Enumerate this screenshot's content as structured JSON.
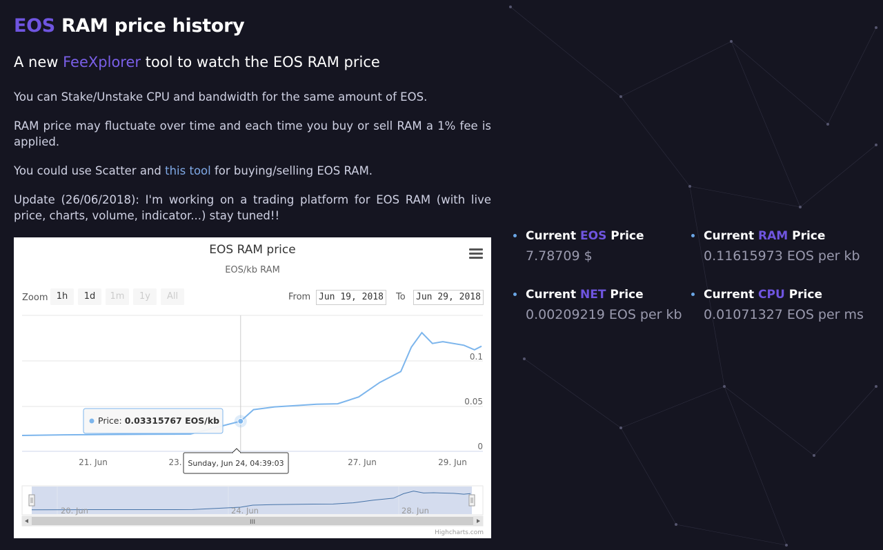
{
  "page": {
    "title_accent": "EOS",
    "title_rest": " RAM price history",
    "subtitle_before": "A new ",
    "subtitle_link": "FeeXplorer",
    "subtitle_after": " tool to watch the EOS RAM price",
    "paragraphs": {
      "p1": "You can Stake/Unstake CPU and bandwidth for the same amount of EOS.",
      "p2": "RAM price may fluctuate over time and each time you buy or sell RAM a 1% fee is applied.",
      "p3_before": "You could use Scatter and ",
      "p3_link": "this tool",
      "p3_after": " for buying/selling EOS RAM.",
      "p4": "Update (26/06/2018): I'm working on a trading platform for EOS RAM (with live price, charts, volume, indicator...) stay tuned!!"
    }
  },
  "colors": {
    "accent": "#6f55e0",
    "link": "#7fa9e6",
    "series": "#7cb5ec",
    "background": "#151521"
  },
  "chart": {
    "menu_icon": "hamburger-menu-icon",
    "zoom_label": "Zoom",
    "range_buttons": [
      "1h",
      "1d",
      "1m",
      "1y",
      "All"
    ],
    "from_label": "From",
    "from_value": "Jun 19, 2018",
    "to_label": "To",
    "to_value": "Jun 29, 2018",
    "tooltip_label": "Price:",
    "tooltip_value": "0.03315767 EOS/kb",
    "crosshair_label": "Sunday, Jun 24, 04:39:03",
    "credit": "Highcharts.com",
    "scrollbar_grip": "III"
  },
  "chart_data": {
    "type": "line",
    "title": "EOS RAM price",
    "subtitle": "EOS/kb RAM",
    "xlabel": "",
    "ylabel": "",
    "x_tick_labels": [
      "21. Jun",
      "23.",
      "27. Jun",
      "29. Jun"
    ],
    "y_tick_labels": [
      "0",
      "0.05",
      "0.1"
    ],
    "ylim": [
      0,
      0.15
    ],
    "xlim": [
      "2018-06-19",
      "2018-06-29"
    ],
    "grid": true,
    "legend": "none",
    "series": [
      {
        "x": [
          "06-19 00:00",
          "06-20 00:00",
          "06-21 00:00",
          "06-22 00:00",
          "06-23 00:00",
          "06-24 04:39",
          "06-24 12:00",
          "06-25 00:00",
          "06-25 12:00",
          "06-26 00:00",
          "06-26 12:00",
          "06-27 00:00",
          "06-27 12:00",
          "06-28 00:00",
          "06-28 06:00",
          "06-28 12:00",
          "06-28 18:00",
          "06-29 00:00",
          "06-29 12:00",
          "06-29 18:00",
          "06-29 22:00"
        ],
        "values": [
          0.0175,
          0.0182,
          0.0186,
          0.0188,
          0.019,
          0.0332,
          0.046,
          0.049,
          0.0505,
          0.052,
          0.0525,
          0.06,
          0.076,
          0.088,
          0.115,
          0.131,
          0.119,
          0.121,
          0.117,
          0.112,
          0.116
        ]
      }
    ],
    "navigator": {
      "x_tick_labels": [
        "20. Jun",
        "24. Jun",
        "28. Jun"
      ]
    }
  },
  "stats": [
    {
      "label_before": "Current ",
      "keyword": "EOS",
      "label_after": " Price",
      "value": "7.78709 $"
    },
    {
      "label_before": "Current ",
      "keyword": "RAM",
      "label_after": " Price",
      "value": "0.11615973 EOS per kb"
    },
    {
      "label_before": "Current ",
      "keyword": "NET",
      "label_after": " Price",
      "value": "0.00209219 EOS per kb"
    },
    {
      "label_before": "Current ",
      "keyword": "CPU",
      "label_after": " Price",
      "value": "0.01071327 EOS per ms"
    }
  ]
}
